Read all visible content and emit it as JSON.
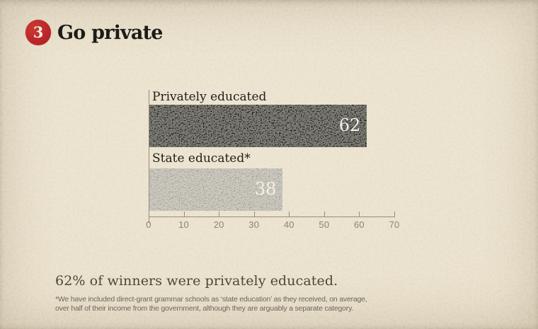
{
  "header": {
    "step_number": "3",
    "title": "Go private"
  },
  "chart_data": {
    "type": "bar",
    "orientation": "horizontal",
    "title": "Go private",
    "categories": [
      "Privately educated",
      "State educated*"
    ],
    "values": [
      62,
      38
    ],
    "value_labels": [
      "62",
      "38"
    ],
    "bar_colors": [
      "#181510",
      "#a29d91"
    ],
    "xlim": [
      0,
      70
    ],
    "xticks": [
      0,
      10,
      20,
      30,
      40,
      50,
      60,
      70
    ],
    "grid": false,
    "legend": false
  },
  "caption": "62% of winners were privately educated.",
  "footnote": {
    "line1": "*We have included direct-grant grammar schools as ‘state education’ as they received, on average,",
    "line2": "over half of their income from the government, although they are arguably a separate category."
  },
  "colors": {
    "background": "#e9dfc9",
    "accent_red": "#bd2629",
    "bar_dark": "#181510",
    "bar_gray": "#a29d91",
    "axis": "#978d79",
    "tick_text": "#8c8370",
    "caption_text": "#4e463a",
    "footnote_text": "#6d665a"
  }
}
